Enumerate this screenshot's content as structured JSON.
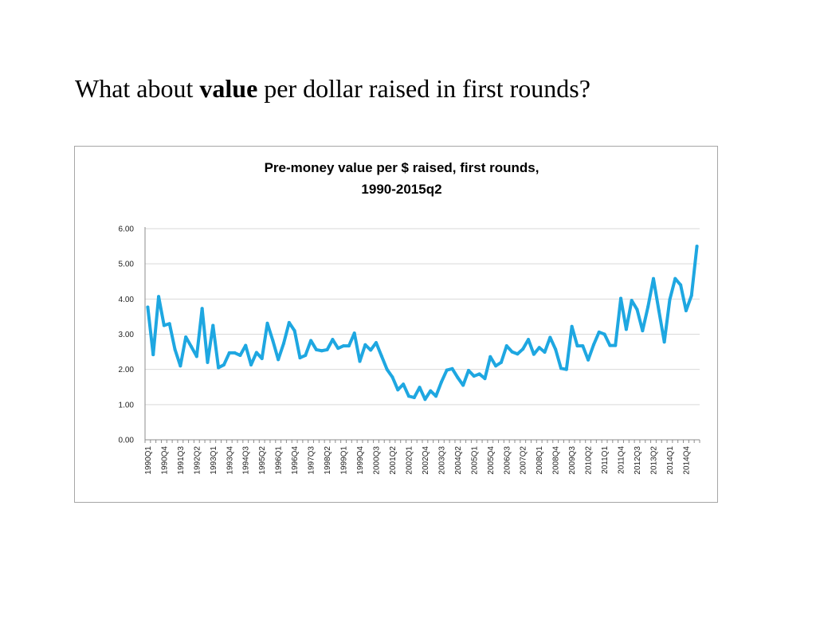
{
  "heading": {
    "prefix": "What about ",
    "emphasis": "value",
    "suffix": " per dollar raised in first rounds?"
  },
  "chart_data": {
    "type": "line",
    "title_lines": [
      "Pre-money value per $ raised, first rounds,",
      "1990-2015q2"
    ],
    "xlabel": "",
    "ylabel": "",
    "ylim": [
      0,
      6
    ],
    "yticks": [
      "0.00",
      "1.00",
      "2.00",
      "3.00",
      "4.00",
      "5.00",
      "6.00"
    ],
    "grid": true,
    "legend": "none",
    "colors": {
      "line": "#1ea7e1",
      "grid": "#d9d9d9",
      "axis": "#8c8c8c"
    },
    "x_tick_labels": [
      "1990Q1",
      "1990Q4",
      "1991Q3",
      "1992Q2",
      "1993Q1",
      "1993Q4",
      "1994Q3",
      "1995Q2",
      "1996Q1",
      "1996Q4",
      "1997Q3",
      "1998Q2",
      "1999Q1",
      "1999Q4",
      "2000Q3",
      "2001Q2",
      "2002Q1",
      "2002Q4",
      "2003Q3",
      "2004Q2",
      "2005Q1",
      "2005Q4",
      "2006Q3",
      "2007Q2",
      "2008Q1",
      "2008Q4",
      "2009Q3",
      "2010Q2",
      "2011Q1",
      "2011Q4",
      "2012Q3",
      "2013Q2",
      "2014Q1",
      "2014Q4"
    ],
    "x_tick_every": 3,
    "series": [
      {
        "values": [
          3.77,
          2.42,
          4.07,
          3.25,
          3.3,
          2.57,
          2.1,
          2.92,
          2.65,
          2.37,
          3.73,
          2.2,
          3.25,
          2.05,
          2.13,
          2.47,
          2.47,
          2.4,
          2.68,
          2.13,
          2.48,
          2.31,
          3.31,
          2.82,
          2.28,
          2.74,
          3.33,
          3.1,
          2.33,
          2.4,
          2.82,
          2.56,
          2.53,
          2.56,
          2.85,
          2.6,
          2.67,
          2.67,
          3.03,
          2.23,
          2.7,
          2.55,
          2.76,
          2.38,
          2.0,
          1.78,
          1.42,
          1.58,
          1.24,
          1.2,
          1.49,
          1.15,
          1.39,
          1.24,
          1.64,
          1.98,
          2.02,
          1.77,
          1.55,
          1.97,
          1.81,
          1.87,
          1.74,
          2.36,
          2.1,
          2.2,
          2.67,
          2.5,
          2.44,
          2.58,
          2.85,
          2.43,
          2.62,
          2.49,
          2.91,
          2.57,
          2.03,
          2.0,
          3.22,
          2.67,
          2.67,
          2.27,
          2.7,
          3.06,
          3.0,
          2.68,
          2.68,
          4.02,
          3.14,
          3.96,
          3.7,
          3.1,
          3.78,
          4.58,
          3.67,
          2.78,
          3.98,
          4.58,
          4.4,
          3.67,
          4.1,
          5.5
        ]
      }
    ]
  }
}
